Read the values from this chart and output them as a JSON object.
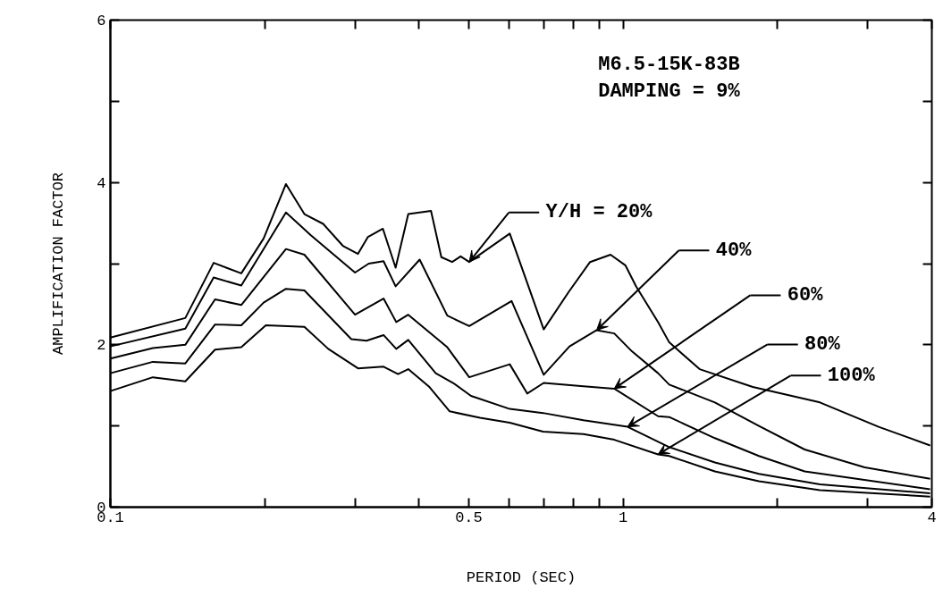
{
  "chart_data": {
    "type": "line",
    "xlabel": "PERIOD (SEC)",
    "ylabel": "AMPLIFICATION FACTOR",
    "annotations": [
      "M6.5-15K-83B",
      "DAMPING = 9%"
    ],
    "log": "x",
    "grid": false,
    "legend": "right",
    "marker": "none",
    "line_style": "solid",
    "xlim": [
      0.1,
      4
    ],
    "ylim": [
      0,
      6
    ],
    "xticks": [
      0.1,
      {
        "value": 0.2,
        "label": null
      },
      {
        "value": 0.3,
        "label": null
      },
      {
        "value": 0.4,
        "label": null
      },
      0.5,
      {
        "value": 0.6,
        "label": null
      },
      {
        "value": 0.7,
        "label": null
      },
      {
        "value": 0.8,
        "label": null
      },
      {
        "value": 0.9,
        "label": null
      },
      1,
      {
        "value": 2,
        "label": null
      },
      {
        "value": 3,
        "label": null
      },
      4
    ],
    "yticks": [
      0,
      {
        "value": 1,
        "label": null
      },
      2,
      {
        "value": 3,
        "label": null
      },
      4,
      {
        "value": 5,
        "label": null
      },
      6
    ],
    "series": [
      {
        "name": "Y/H = 20%",
        "color": "#000000",
        "x": [
          0.1,
          0.14,
          0.159,
          0.18,
          0.199,
          0.22,
          0.239,
          0.26,
          0.284,
          0.304,
          0.318,
          0.34,
          0.36,
          0.381,
          0.422,
          0.442,
          0.464,
          0.482,
          0.501,
          0.601,
          0.7,
          0.783,
          0.862,
          0.945,
          1.01,
          1.06,
          1.17,
          1.23,
          1.41,
          1.79,
          2.42,
          3.15,
          3.97
        ],
        "values": [
          2.09,
          2.33,
          3.01,
          2.88,
          3.31,
          3.98,
          3.61,
          3.49,
          3.22,
          3.12,
          3.33,
          3.43,
          2.95,
          3.61,
          3.65,
          3.08,
          3.02,
          3.09,
          3.02,
          3.37,
          2.19,
          2.65,
          3.02,
          3.11,
          2.98,
          2.72,
          2.28,
          2.03,
          1.7,
          1.48,
          1.29,
          0.99,
          0.76
        ]
      },
      {
        "name": "40%",
        "color": "#000000",
        "x": [
          0.1,
          0.14,
          0.159,
          0.18,
          0.22,
          0.246,
          0.3,
          0.319,
          0.341,
          0.36,
          0.401,
          0.454,
          0.501,
          0.606,
          0.7,
          0.786,
          0.888,
          0.961,
          1.04,
          1.17,
          1.23,
          1.51,
          1.84,
          2.26,
          2.96,
          3.97
        ],
        "values": [
          1.98,
          2.2,
          2.83,
          2.73,
          3.63,
          3.35,
          2.89,
          3.0,
          3.03,
          2.72,
          3.05,
          2.36,
          2.23,
          2.54,
          1.63,
          1.98,
          2.18,
          2.14,
          1.92,
          1.65,
          1.51,
          1.29,
          1.0,
          0.71,
          0.49,
          0.35
        ]
      },
      {
        "name": "60%",
        "color": "#000000",
        "x": [
          0.1,
          0.121,
          0.14,
          0.16,
          0.18,
          0.22,
          0.239,
          0.3,
          0.341,
          0.361,
          0.381,
          0.454,
          0.501,
          0.601,
          0.65,
          0.7,
          0.837,
          0.961,
          1.17,
          1.23,
          1.51,
          1.84,
          2.26,
          3.97
        ],
        "values": [
          1.83,
          1.96,
          2.0,
          2.56,
          2.49,
          3.18,
          3.11,
          2.37,
          2.57,
          2.28,
          2.37,
          1.97,
          1.6,
          1.76,
          1.4,
          1.53,
          1.49,
          1.46,
          1.12,
          1.11,
          0.85,
          0.63,
          0.44,
          0.22
        ]
      },
      {
        "name": "80%",
        "color": "#000000",
        "x": [
          0.1,
          0.121,
          0.14,
          0.16,
          0.18,
          0.199,
          0.22,
          0.239,
          0.295,
          0.316,
          0.341,
          0.361,
          0.381,
          0.431,
          0.466,
          0.505,
          0.601,
          0.698,
          0.837,
          1.02,
          1.23,
          1.51,
          1.84,
          2.42,
          3.97
        ],
        "values": [
          1.65,
          1.79,
          1.77,
          2.25,
          2.24,
          2.52,
          2.69,
          2.67,
          2.07,
          2.05,
          2.12,
          1.95,
          2.06,
          1.65,
          1.53,
          1.37,
          1.21,
          1.16,
          1.07,
          0.99,
          0.74,
          0.55,
          0.41,
          0.28,
          0.17
        ]
      },
      {
        "name": "100%",
        "color": "#000000",
        "x": [
          0.1,
          0.121,
          0.14,
          0.16,
          0.18,
          0.201,
          0.239,
          0.266,
          0.304,
          0.341,
          0.364,
          0.381,
          0.419,
          0.459,
          0.526,
          0.601,
          0.698,
          0.837,
          0.961,
          1.17,
          1.23,
          1.51,
          1.84,
          2.42,
          3.97
        ],
        "values": [
          1.43,
          1.6,
          1.55,
          1.94,
          1.97,
          2.24,
          2.22,
          1.95,
          1.71,
          1.73,
          1.64,
          1.7,
          1.48,
          1.18,
          1.1,
          1.04,
          0.93,
          0.9,
          0.83,
          0.65,
          0.63,
          0.44,
          0.32,
          0.21,
          0.13
        ]
      }
    ]
  }
}
